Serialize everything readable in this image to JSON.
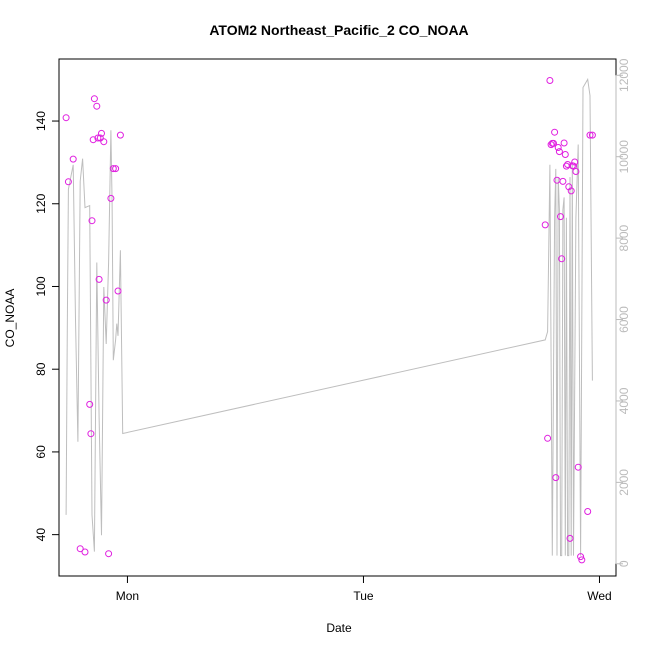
{
  "chart_data": {
    "type": "scatter",
    "title": "ATOM2 Northeast_Pacific_2 CO_NOAA",
    "xlabel": "Date",
    "ylabel": "CO_NOAA",
    "x_ticks": [
      "Mon",
      "Tue",
      "Wed"
    ],
    "y_ticks": [
      "40",
      "60",
      "80",
      "100",
      "120",
      "140"
    ],
    "y2_ticks": [
      "0",
      "2000",
      "4000",
      "6000",
      "8000",
      "10000",
      "12000"
    ],
    "xlim_days": [
      -0.29,
      2.07
    ],
    "ylim": [
      30,
      155
    ],
    "y2lim": [
      -300,
      12400
    ],
    "grid": false,
    "colors": {
      "points": "#e020e0",
      "altitude_line": "#bebebe",
      "axis": "#000000",
      "right_axis": "#bbbbbb"
    },
    "series": [
      {
        "kind": "points",
        "x_days": [
          -0.26,
          -0.25,
          -0.23,
          -0.2,
          -0.18,
          -0.16,
          -0.155,
          -0.15,
          -0.145,
          -0.14,
          -0.13,
          -0.125,
          -0.12,
          -0.115,
          -0.11,
          -0.1,
          -0.09,
          -0.08,
          -0.07,
          -0.06,
          -0.05,
          -0.04,
          -0.03,
          1.77,
          1.78,
          1.79,
          1.795,
          1.8,
          1.805,
          1.81,
          1.815,
          1.82,
          1.825,
          1.83,
          1.835,
          1.84,
          1.845,
          1.85,
          1.855,
          1.86,
          1.865,
          1.87,
          1.875,
          1.88,
          1.885,
          1.89,
          1.895,
          1.9,
          1.91,
          1.92,
          1.925,
          1.95,
          1.96,
          1.97
        ],
        "y": [
          140.8,
          125.3,
          130.8,
          36.6,
          35.8,
          71.5,
          64.4,
          115.9,
          135.5,
          145.4,
          143.6,
          135.9,
          101.7,
          135.9,
          137,
          135,
          96.7,
          35.4,
          121.3,
          128.5,
          128.5,
          98.9,
          136.6,
          114.9,
          63.3,
          149.8,
          134.3,
          134.6,
          134.6,
          137.3,
          53.8,
          125.7,
          133.6,
          132.6,
          116.9,
          106.7,
          125.4,
          134.7,
          131.9,
          129.1,
          129.5,
          124.1,
          39.1,
          123.1,
          129.2,
          129.1,
          130.1,
          127.8,
          56.3,
          34.7,
          33.9,
          45.6,
          136.6,
          136.6
        ]
      },
      {
        "kind": "line",
        "axis": "right",
        "x_days": [
          -0.26,
          -0.255,
          -0.25,
          -0.23,
          -0.22,
          -0.21,
          -0.2,
          -0.19,
          -0.18,
          -0.16,
          -0.15,
          -0.14,
          -0.13,
          -0.12,
          -0.11,
          -0.1,
          -0.09,
          -0.08,
          -0.07,
          -0.065,
          -0.06,
          -0.05,
          -0.045,
          -0.04,
          -0.03,
          -0.02,
          1.77,
          1.78,
          1.79,
          1.8,
          1.81,
          1.815,
          1.82,
          1.825,
          1.83,
          1.835,
          1.84,
          1.845,
          1.85,
          1.855,
          1.86,
          1.865,
          1.87,
          1.875,
          1.88,
          1.885,
          1.89,
          1.9,
          1.91,
          1.92,
          1.93,
          1.95,
          1.96,
          1.97
        ],
        "y": [
          1200,
          5800,
          9200,
          9800,
          6000,
          3000,
          9400,
          9950,
          8750,
          8800,
          1200,
          300,
          7400,
          3600,
          700,
          6800,
          5400,
          7400,
          10650,
          8850,
          5000,
          5500,
          5900,
          5600,
          7700,
          3200,
          5500,
          5700,
          9800,
          200,
          8500,
          9700,
          200,
          9500,
          8700,
          200,
          200,
          8700,
          9000,
          200,
          8500,
          200,
          200,
          9500,
          200,
          9800,
          200,
          8500,
          10300,
          200,
          11700,
          11900,
          11500,
          4500
        ]
      }
    ]
  }
}
